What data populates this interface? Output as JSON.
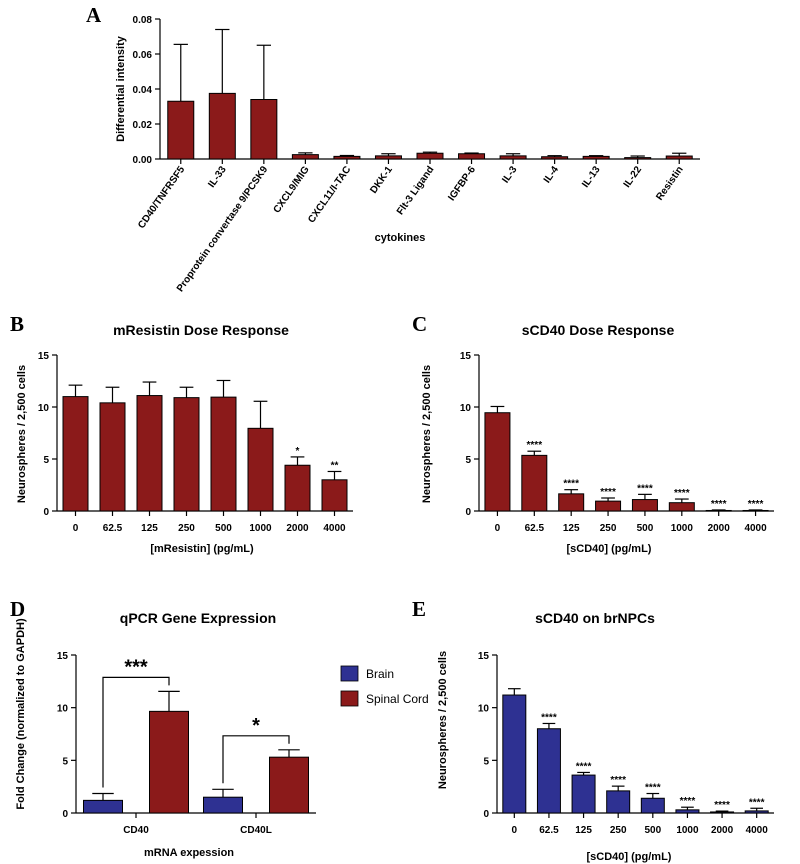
{
  "colors": {
    "red": "#8B1A1A",
    "blue": "#2E3192",
    "axis": "#000000"
  },
  "chart_data": [
    {
      "id": "A",
      "panel_label": "A",
      "type": "bar",
      "title": "",
      "xlabel": "cytokines",
      "ylabel": "Differential intensity",
      "ylim": [
        0,
        0.08
      ],
      "yticks": [
        "0.00",
        "0.02",
        "0.04",
        "0.06",
        "0.08"
      ],
      "ytick_values": [
        0,
        0.02,
        0.04,
        0.06,
        0.08
      ],
      "categories": [
        "CD40/TNFRSF5",
        "IL-33",
        "Proprotein convertase 9/PCSK9",
        "CXCL9/MIG",
        "CXCL11/I-TAC",
        "DKK-1",
        "Flt-3 Ligand",
        "IGFBP-6",
        "IL-3",
        "IL-4",
        "IL-13",
        "IL-22",
        "Resistin"
      ],
      "values": [
        0.033,
        0.0375,
        0.034,
        0.0025,
        0.0015,
        0.0018,
        0.0033,
        0.003,
        0.0018,
        0.0013,
        0.0015,
        0.0008,
        0.0017
      ],
      "errors": [
        0.0325,
        0.0365,
        0.031,
        0.001,
        0.0005,
        0.0012,
        0.0006,
        0.0004,
        0.0012,
        0.0006,
        0.0004,
        0.0009,
        0.0016
      ],
      "significance": [
        "",
        "",
        "",
        "",
        "",
        "",
        "",
        "",
        "",
        "",
        "",
        "",
        ""
      ],
      "color": "#8B1A1A"
    },
    {
      "id": "B",
      "panel_label": "B",
      "type": "bar",
      "title": "mResistin Dose Response",
      "xlabel": "[mResistin] (pg/mL)",
      "ylabel": "Neurospheres / 2,500 cells",
      "ylim": [
        0,
        15
      ],
      "yticks": [
        "0",
        "5",
        "10",
        "15"
      ],
      "ytick_values": [
        0,
        5,
        10,
        15
      ],
      "categories": [
        "0",
        "62.5",
        "125",
        "250",
        "500",
        "1000",
        "2000",
        "4000"
      ],
      "values": [
        11.0,
        10.4,
        11.1,
        10.9,
        10.95,
        7.95,
        4.4,
        3.0
      ],
      "errors": [
        1.1,
        1.5,
        1.3,
        1.0,
        1.6,
        2.6,
        0.8,
        0.8
      ],
      "significance": [
        "",
        "",
        "",
        "",
        "",
        "",
        "*",
        "**"
      ],
      "color": "#8B1A1A"
    },
    {
      "id": "C",
      "panel_label": "C",
      "type": "bar",
      "title": "sCD40 Dose Response",
      "xlabel": "[sCD40] (pg/mL)",
      "ylabel": "Neurospheres / 2,500 cells",
      "ylim": [
        0,
        15
      ],
      "yticks": [
        "0",
        "5",
        "10",
        "15"
      ],
      "ytick_values": [
        0,
        5,
        10,
        15
      ],
      "categories": [
        "0",
        "62.5",
        "125",
        "250",
        "500",
        "1000",
        "2000",
        "4000"
      ],
      "values": [
        9.45,
        5.35,
        1.65,
        0.95,
        1.1,
        0.8,
        0.05,
        0.05
      ],
      "errors": [
        0.6,
        0.4,
        0.4,
        0.3,
        0.5,
        0.35,
        0.05,
        0.05
      ],
      "significance": [
        "",
        "****",
        "****",
        "****",
        "****",
        "****",
        "****",
        "****"
      ],
      "color": "#8B1A1A"
    },
    {
      "id": "D",
      "panel_label": "D",
      "type": "grouped-bar",
      "title": "qPCR Gene Expression",
      "xlabel": "mRNA expession",
      "ylabel": "Fold Change (normalized to GAPDH)",
      "ylim": [
        0,
        15
      ],
      "yticks": [
        "0",
        "5",
        "10",
        "15"
      ],
      "ytick_values": [
        0,
        5,
        10,
        15
      ],
      "categories": [
        "CD40",
        "CD40L"
      ],
      "series": [
        {
          "name": "Brain",
          "values": [
            1.2,
            1.5
          ],
          "errors": [
            0.65,
            0.75
          ],
          "color": "#2E3192"
        },
        {
          "name": "Spinal Cord",
          "values": [
            9.65,
            5.3
          ],
          "errors": [
            1.9,
            0.7
          ],
          "color": "#8B1A1A"
        }
      ],
      "brackets": [
        "***",
        "*"
      ],
      "legend_position": "right"
    },
    {
      "id": "E",
      "panel_label": "E",
      "type": "bar",
      "title": "sCD40 on brNPCs",
      "xlabel": "[sCD40] (pg/mL)",
      "ylabel": "Neurospheres / 2,500 cells",
      "ylim": [
        0,
        15
      ],
      "yticks": [
        "0",
        "5",
        "10",
        "15"
      ],
      "ytick_values": [
        0,
        5,
        10,
        15
      ],
      "categories": [
        "0",
        "62.5",
        "125",
        "250",
        "500",
        "1000",
        "2000",
        "4000"
      ],
      "values": [
        11.2,
        8.0,
        3.6,
        2.1,
        1.4,
        0.3,
        0.1,
        0.2
      ],
      "errors": [
        0.6,
        0.5,
        0.25,
        0.45,
        0.45,
        0.25,
        0.08,
        0.25
      ],
      "significance": [
        "",
        "****",
        "****",
        "****",
        "****",
        "****",
        "****",
        "****"
      ],
      "color": "#2E3192"
    }
  ]
}
